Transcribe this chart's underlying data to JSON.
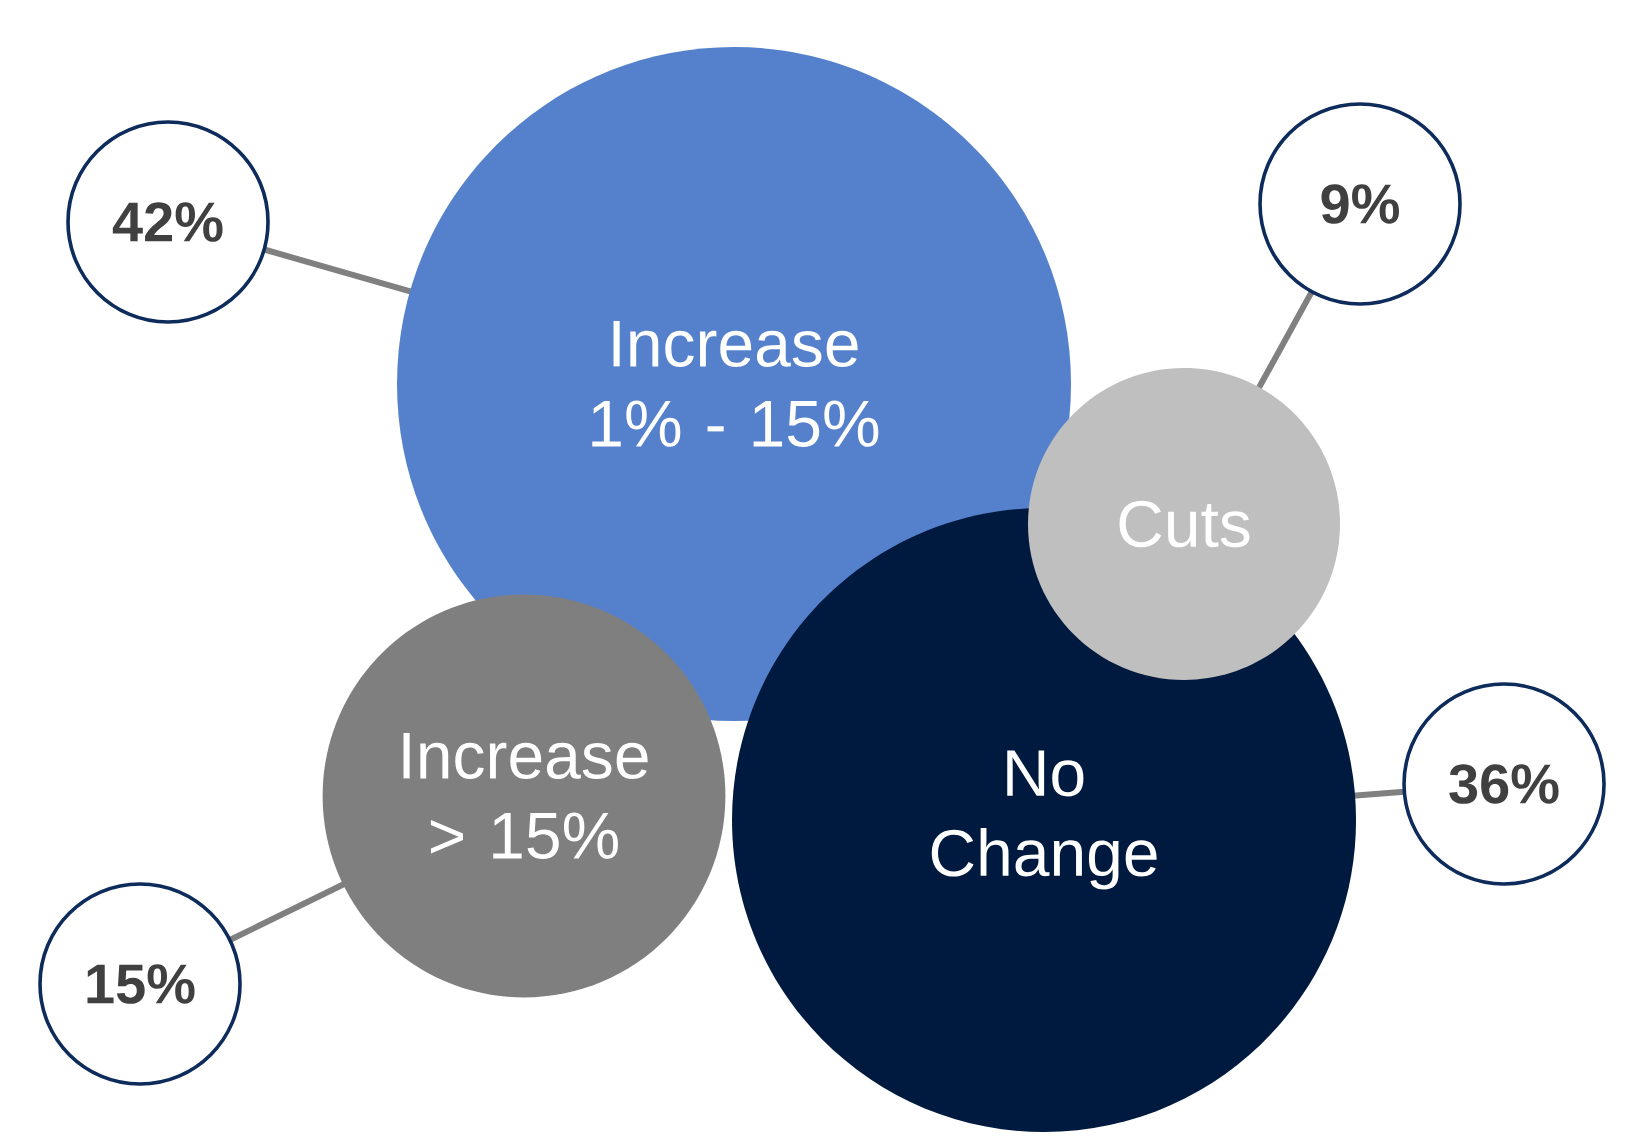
{
  "chart_data": {
    "type": "other",
    "categories": [
      "Increase 1% - 15%",
      "Cuts",
      "Increase > 15%",
      "No Change"
    ],
    "values": [
      42,
      9,
      15,
      36
    ],
    "value_labels": [
      "42%",
      "9%",
      "15%",
      "36%"
    ],
    "colors": [
      "#5581cc",
      "#bfbfbf",
      "#7f7f7f",
      "#001a3f"
    ]
  }
}
